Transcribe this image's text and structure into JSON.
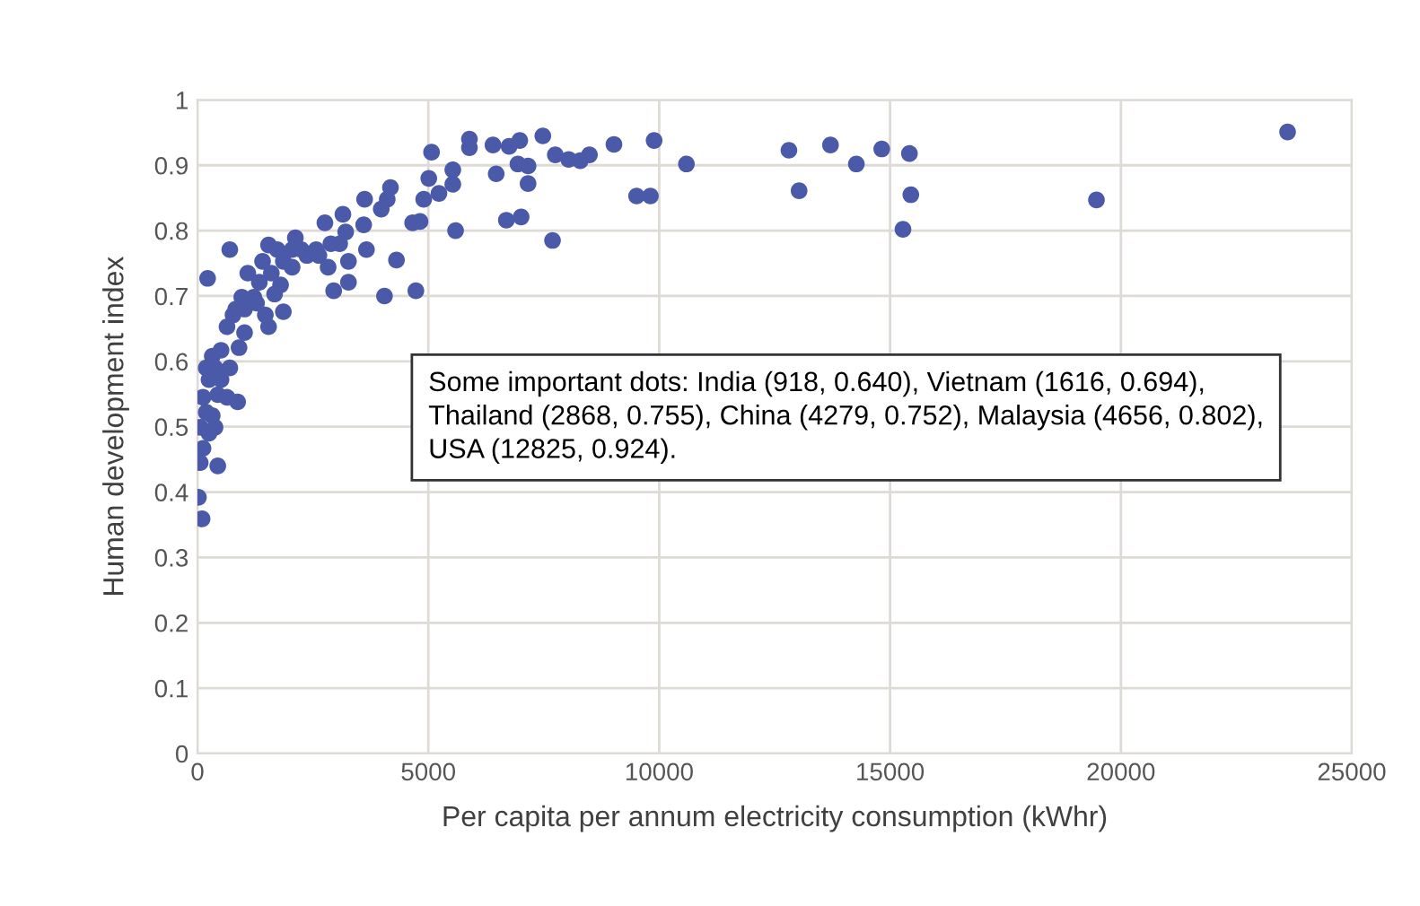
{
  "chart_data": {
    "type": "scatter",
    "xlabel": "Per capita per annum electricity consumption (kWhr)",
    "ylabel": "Human development index",
    "annotations": [
      "Some important dots: India (918, 0.640), Vietnam (1616, 0.694), Thailand (2868, 0.755), China (4279, 0.752), Malaysia (4656, 0.802), USA (12825, 0.924)."
    ],
    "xlim": [
      0,
      25000
    ],
    "xticks": [
      0,
      5000,
      10000,
      15000,
      20000,
      25000
    ],
    "ylim": [
      0,
      1
    ],
    "yticks": [
      0,
      0.1,
      0.2,
      0.3,
      0.4,
      0.5,
      0.6,
      0.7,
      0.8,
      0.9,
      1
    ],
    "grid": true,
    "marker": "circle",
    "series": [
      {
        "color": "#4a5aa8",
        "x": [
          12810,
          13030,
          13710,
          14270,
          14820,
          15420,
          15450,
          15280,
          19470,
          23610,
          5070,
          5890,
          5890,
          6400,
          6750,
          6980,
          7480,
          7750,
          8040,
          8290,
          8490,
          9020,
          9890,
          10590,
          9510,
          9810,
          6940,
          7160,
          6470,
          7160,
          6690,
          7010,
          7690,
          5590,
          4730,
          5530,
          5530,
          5010,
          5230,
          4900,
          4660,
          4820,
          4050,
          2950,
          3270,
          4180,
          4110,
          3980,
          3620,
          3150,
          3600,
          3660,
          4310,
          3210,
          3270,
          2760,
          3080,
          2890,
          2630,
          2370,
          2120,
          2050,
          1860,
          1540,
          1410,
          1600,
          1800,
          1090,
          1340,
          1860,
          1540,
          1220,
          960,
          830,
          640,
          1020,
          900,
          700,
          220,
          320,
          190,
          380,
          250,
          510,
          700,
          120,
          440,
          640,
          870,
          60,
          320,
          380,
          120,
          60,
          440,
          20,
          100,
          250,
          190,
          510,
          2050,
          2250,
          2570,
          2830,
          1670,
          1470,
          1280,
          1730,
          770,
          1020
        ],
        "values": [
          0.923,
          0.861,
          0.931,
          0.902,
          0.925,
          0.918,
          0.855,
          0.802,
          0.847,
          0.951,
          0.92,
          0.94,
          0.927,
          0.931,
          0.929,
          0.938,
          0.945,
          0.916,
          0.909,
          0.907,
          0.916,
          0.932,
          0.938,
          0.902,
          0.853,
          0.853,
          0.902,
          0.899,
          0.887,
          0.872,
          0.816,
          0.821,
          0.785,
          0.8,
          0.708,
          0.893,
          0.871,
          0.88,
          0.857,
          0.848,
          0.812,
          0.814,
          0.7,
          0.708,
          0.721,
          0.866,
          0.848,
          0.833,
          0.848,
          0.825,
          0.809,
          0.771,
          0.755,
          0.798,
          0.753,
          0.812,
          0.78,
          0.78,
          0.762,
          0.762,
          0.789,
          0.771,
          0.753,
          0.778,
          0.753,
          0.735,
          0.717,
          0.735,
          0.721,
          0.676,
          0.653,
          0.698,
          0.698,
          0.68,
          0.653,
          0.644,
          0.621,
          0.771,
          0.727,
          0.608,
          0.59,
          0.59,
          0.572,
          0.572,
          0.59,
          0.545,
          0.549,
          0.545,
          0.538,
          0.499,
          0.517,
          0.499,
          0.467,
          0.445,
          0.44,
          0.392,
          0.359,
          0.49,
          0.522,
          0.617,
          0.744,
          0.771,
          0.771,
          0.744,
          0.703,
          0.671,
          0.689,
          0.771,
          0.671,
          0.68
        ]
      }
    ]
  }
}
